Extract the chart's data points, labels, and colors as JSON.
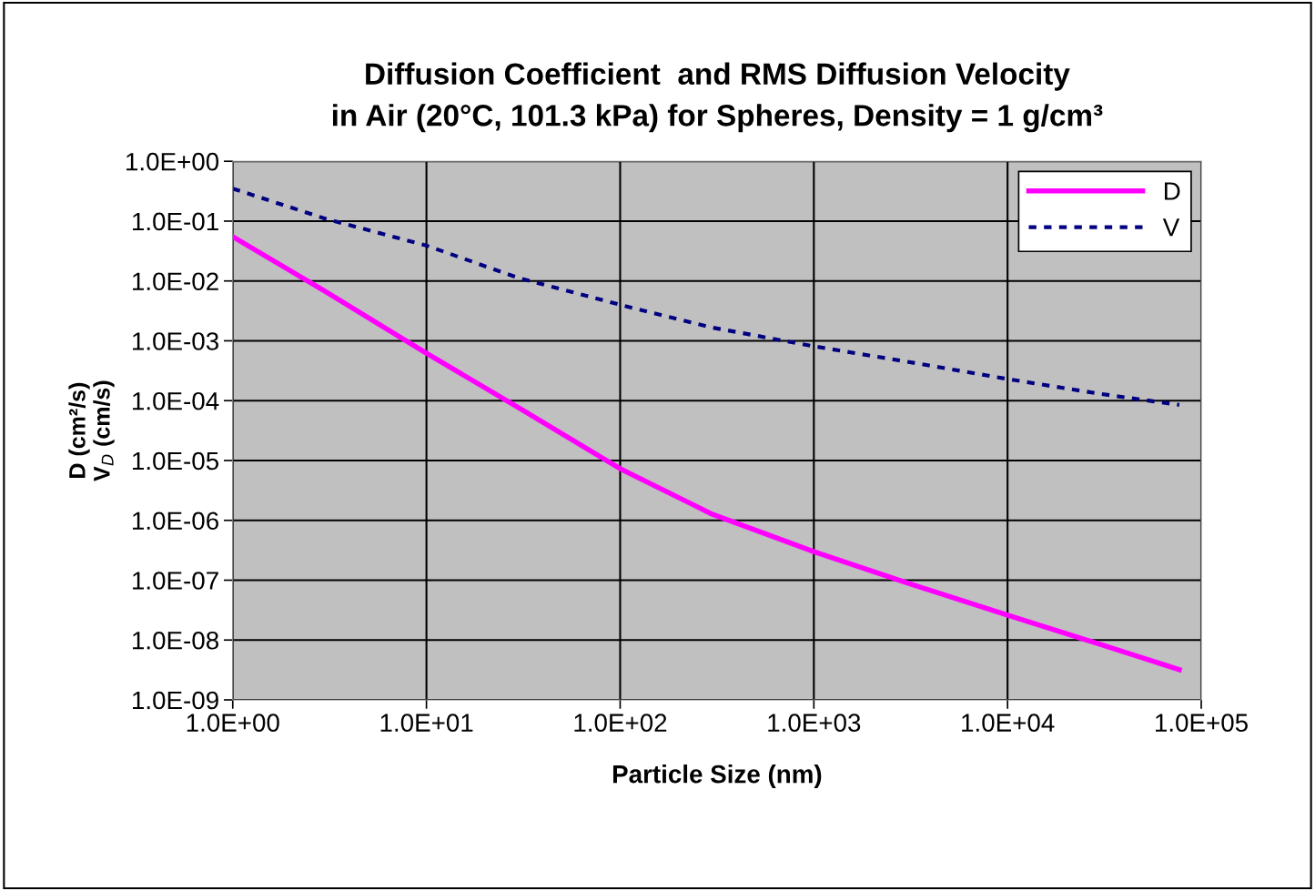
{
  "chart_data": {
    "type": "line",
    "title": "Diffusion Coefficient  and RMS Diffusion Velocity\nin Air (20°C, 101.3 kPa) for Spheres, Density = 1 g/cm³",
    "xlabel": "Particle Size (nm)",
    "ylabel": "D (cm²/s)\nV$_{D}$ (cm/s)",
    "log": "xy",
    "grid": true,
    "legend": "top right",
    "xlim": [
      1,
      100000
    ],
    "ylim": [
      1e-09,
      1
    ],
    "xticks": [
      {
        "value": 1,
        "label": "1.0E+00"
      },
      {
        "value": 10,
        "label": "1.0E+01"
      },
      {
        "value": 100,
        "label": "1.0E+02"
      },
      {
        "value": 1000,
        "label": "1.0E+03"
      },
      {
        "value": 10000,
        "label": "1.0E+04"
      },
      {
        "value": 100000,
        "label": "1.0E+05"
      }
    ],
    "yticks": [
      {
        "value": 1e-09,
        "label": "1.0E-09"
      },
      {
        "value": 1e-08,
        "label": "1.0E-08"
      },
      {
        "value": 1e-07,
        "label": "1.0E-07"
      },
      {
        "value": 1e-06,
        "label": "1.0E-06"
      },
      {
        "value": 1e-05,
        "label": "1.0E-05"
      },
      {
        "value": 0.0001,
        "label": "1.0E-04"
      },
      {
        "value": 0.001,
        "label": "1.0E-03"
      },
      {
        "value": 0.01,
        "label": "1.0E-02"
      },
      {
        "value": 0.1,
        "label": "1.0E-01"
      },
      {
        "value": 1,
        "label": "1.0E+00"
      }
    ],
    "x": [
      1,
      3,
      10,
      30,
      100,
      300,
      1000,
      3000,
      10000,
      30000,
      77000
    ],
    "series": [
      {
        "name": "D",
        "color": "#ff00ff",
        "line_style": "solid",
        "values": [
          0.055,
          0.0067,
          0.00062,
          7.6e-05,
          7.3e-06,
          1.26e-06,
          3e-07,
          9.1e-08,
          2.6e-08,
          8.5e-09,
          3.2e-09
        ]
      },
      {
        "name": "V",
        "color": "#000080",
        "line_style": "dashed",
        "values": [
          0.35,
          0.11,
          0.039,
          0.0112,
          0.004,
          0.00166,
          0.00081,
          0.00045,
          0.00023,
          0.00013,
          8.5e-05
        ]
      }
    ]
  }
}
